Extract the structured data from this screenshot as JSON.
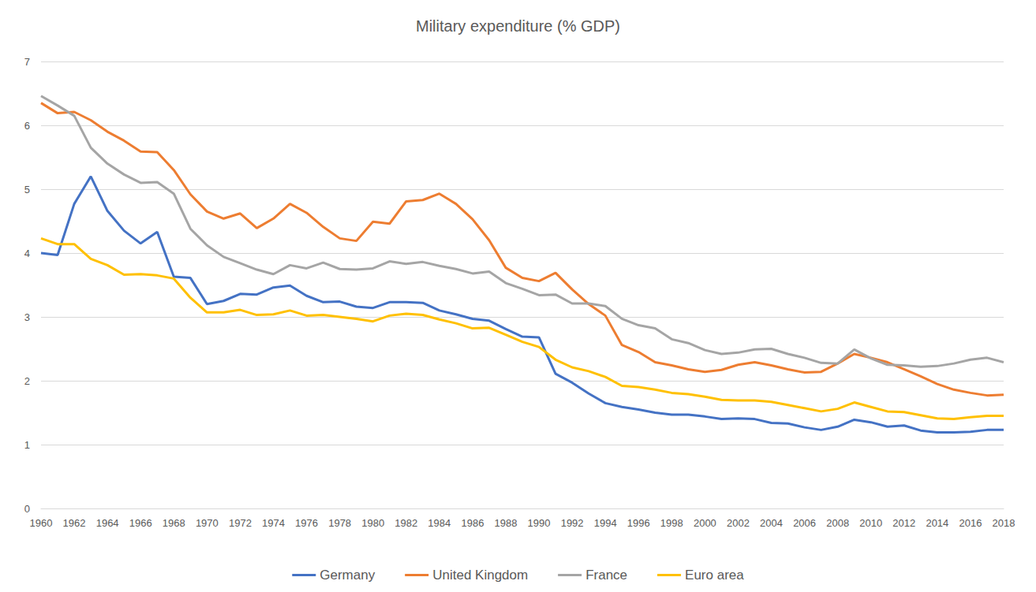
{
  "chart_data": {
    "type": "line",
    "title": "Military expenditure (% GDP)",
    "categories": [
      "1960",
      null,
      "1962",
      null,
      "1964",
      null,
      "1966",
      null,
      "1968",
      null,
      "1970",
      null,
      "1972",
      null,
      "1974",
      null,
      "1976",
      null,
      "1978",
      null,
      "1980",
      null,
      "1982",
      null,
      "1984",
      null,
      "1986",
      null,
      "1988",
      null,
      "1990",
      null,
      "1992",
      null,
      "1994",
      null,
      "1996",
      null,
      "1998",
      null,
      "2000",
      null,
      "2002",
      null,
      "2004",
      null,
      "2006",
      null,
      "2008",
      null,
      "2010",
      null,
      "2012",
      null,
      "2014",
      null,
      "2016",
      null,
      "2018"
    ],
    "series": [
      {
        "name": "Germany",
        "color": "#4472C4",
        "values": [
          4.0,
          3.97,
          4.77,
          5.2,
          4.66,
          4.35,
          4.15,
          4.33,
          3.63,
          3.61,
          3.2,
          3.25,
          3.36,
          3.35,
          3.46,
          3.49,
          3.33,
          3.23,
          3.24,
          3.16,
          3.14,
          3.23,
          3.23,
          3.22,
          3.1,
          3.04,
          2.97,
          2.94,
          2.81,
          2.69,
          2.68,
          2.11,
          1.97,
          1.8,
          1.65,
          1.59,
          1.55,
          1.5,
          1.47,
          1.47,
          1.44,
          1.4,
          1.41,
          1.4,
          1.34,
          1.33,
          1.27,
          1.23,
          1.28,
          1.39,
          1.35,
          1.28,
          1.3,
          1.22,
          1.19,
          1.19,
          1.2,
          1.23,
          1.23
        ]
      },
      {
        "name": "United Kingdom",
        "color": "#ED7D31",
        "values": [
          6.35,
          6.19,
          6.21,
          6.08,
          5.9,
          5.76,
          5.59,
          5.58,
          5.3,
          4.92,
          4.65,
          4.54,
          4.62,
          4.39,
          4.54,
          4.77,
          4.63,
          4.41,
          4.23,
          4.19,
          4.49,
          4.46,
          4.81,
          4.83,
          4.93,
          4.77,
          4.53,
          4.2,
          3.77,
          3.61,
          3.56,
          3.69,
          3.43,
          3.2,
          3.02,
          2.56,
          2.45,
          2.29,
          2.24,
          2.18,
          2.14,
          2.17,
          2.25,
          2.29,
          2.24,
          2.18,
          2.13,
          2.14,
          2.27,
          2.42,
          2.36,
          2.29,
          2.18,
          2.07,
          1.95,
          1.86,
          1.81,
          1.77,
          1.78
        ]
      },
      {
        "name": "France",
        "color": "#A5A5A5",
        "values": [
          6.46,
          6.31,
          6.15,
          5.65,
          5.4,
          5.23,
          5.1,
          5.11,
          4.93,
          4.38,
          4.12,
          3.94,
          3.84,
          3.74,
          3.67,
          3.81,
          3.76,
          3.85,
          3.75,
          3.74,
          3.76,
          3.87,
          3.83,
          3.86,
          3.8,
          3.75,
          3.68,
          3.71,
          3.53,
          3.44,
          3.34,
          3.35,
          3.21,
          3.21,
          3.17,
          2.97,
          2.87,
          2.82,
          2.65,
          2.59,
          2.48,
          2.42,
          2.44,
          2.49,
          2.5,
          2.42,
          2.36,
          2.28,
          2.27,
          2.49,
          2.35,
          2.25,
          2.24,
          2.22,
          2.23,
          2.27,
          2.33,
          2.36,
          2.29
        ]
      },
      {
        "name": "Euro area",
        "color": "#FFC000",
        "values": [
          4.23,
          4.14,
          4.14,
          3.91,
          3.81,
          3.66,
          3.67,
          3.65,
          3.6,
          3.3,
          3.07,
          3.07,
          3.11,
          3.03,
          3.04,
          3.1,
          3.02,
          3.03,
          3.0,
          2.97,
          2.93,
          3.02,
          3.05,
          3.03,
          2.96,
          2.9,
          2.82,
          2.83,
          2.72,
          2.61,
          2.53,
          2.33,
          2.21,
          2.15,
          2.06,
          1.92,
          1.9,
          1.86,
          1.81,
          1.79,
          1.75,
          1.7,
          1.69,
          1.69,
          1.67,
          1.62,
          1.57,
          1.52,
          1.56,
          1.66,
          1.59,
          1.52,
          1.51,
          1.46,
          1.41,
          1.4,
          1.43,
          1.45,
          1.45
        ]
      }
    ],
    "ylim": [
      0,
      7
    ],
    "yticks": [
      0,
      1,
      2,
      3,
      4,
      5,
      6,
      7
    ],
    "grid": true,
    "legend": "bottom"
  }
}
